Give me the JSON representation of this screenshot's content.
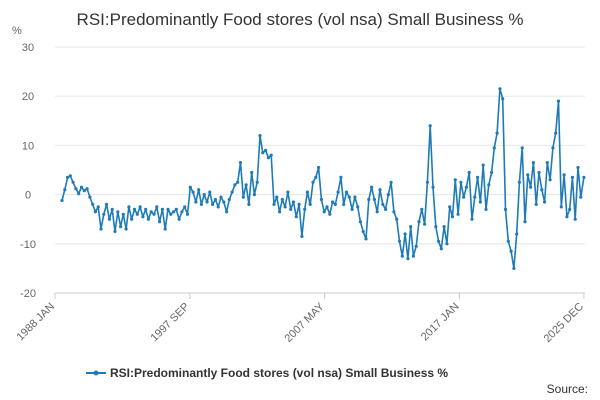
{
  "chart_data": {
    "type": "line",
    "title": "RSI:Predominantly Food stores (vol nsa) Small Business %",
    "ylabel": "%",
    "xlabel": "",
    "ylim": [
      -20,
      30
    ],
    "yticks": [
      30,
      20,
      10,
      0,
      -10,
      -20
    ],
    "x_range": [
      1988.0,
      2026.0
    ],
    "xticks": [
      {
        "label": "1988 JAN",
        "x": 1988.0
      },
      {
        "label": "1997 SEP",
        "x": 1997.67
      },
      {
        "label": "2007 MAY",
        "x": 2007.33
      },
      {
        "label": "2017 JAN",
        "x": 2017.0
      },
      {
        "label": "2025 DEC",
        "x": 2025.92
      }
    ],
    "grid": true,
    "legend": "bottom-center",
    "series": [
      {
        "name": "RSI:Predominantly Food stores (vol nsa) Small Business %",
        "color": "#1f7bb6",
        "points": [
          [
            1988.5,
            -1.2
          ],
          [
            1988.7,
            1.0
          ],
          [
            1988.9,
            3.5
          ],
          [
            1989.1,
            3.8
          ],
          [
            1989.3,
            2.5
          ],
          [
            1989.5,
            1.2
          ],
          [
            1989.7,
            0.2
          ],
          [
            1989.9,
            1.5
          ],
          [
            1990.1,
            0.8
          ],
          [
            1990.3,
            1.2
          ],
          [
            1990.5,
            -0.5
          ],
          [
            1990.7,
            -2.0
          ],
          [
            1990.9,
            -3.5
          ],
          [
            1991.1,
            -2.5
          ],
          [
            1991.3,
            -7.0
          ],
          [
            1991.5,
            -4.0
          ],
          [
            1991.7,
            -2.0
          ],
          [
            1991.9,
            -5.0
          ],
          [
            1992.1,
            -3.0
          ],
          [
            1992.3,
            -7.5
          ],
          [
            1992.5,
            -3.5
          ],
          [
            1992.7,
            -6.5
          ],
          [
            1992.9,
            -4.0
          ],
          [
            1993.1,
            -7.0
          ],
          [
            1993.3,
            -2.5
          ],
          [
            1993.5,
            -5.0
          ],
          [
            1993.7,
            -3.0
          ],
          [
            1993.9,
            -4.0
          ],
          [
            1994.1,
            -2.5
          ],
          [
            1994.3,
            -4.5
          ],
          [
            1994.5,
            -3.0
          ],
          [
            1994.7,
            -5.0
          ],
          [
            1994.9,
            -3.5
          ],
          [
            1995.1,
            -4.0
          ],
          [
            1995.3,
            -2.5
          ],
          [
            1995.5,
            -5.5
          ],
          [
            1995.7,
            -3.0
          ],
          [
            1995.9,
            -7.0
          ],
          [
            1996.1,
            -3.0
          ],
          [
            1996.3,
            -4.0
          ],
          [
            1996.5,
            -3.5
          ],
          [
            1996.7,
            -3.0
          ],
          [
            1996.9,
            -5.0
          ],
          [
            1997.1,
            -3.5
          ],
          [
            1997.3,
            -2.5
          ],
          [
            1997.5,
            -4.0
          ],
          [
            1997.7,
            1.5
          ],
          [
            1997.9,
            0.5
          ],
          [
            1998.1,
            -1.5
          ],
          [
            1998.3,
            1.0
          ],
          [
            1998.5,
            -2.0
          ],
          [
            1998.7,
            0.0
          ],
          [
            1998.9,
            -1.5
          ],
          [
            1999.1,
            0.5
          ],
          [
            1999.3,
            -2.0
          ],
          [
            1999.5,
            -1.0
          ],
          [
            1999.7,
            -2.5
          ],
          [
            1999.9,
            -0.5
          ],
          [
            2000.1,
            -1.5
          ],
          [
            2000.3,
            -3.5
          ],
          [
            2000.5,
            -1.0
          ],
          [
            2000.7,
            0.5
          ],
          [
            2000.9,
            2.0
          ],
          [
            2001.1,
            2.5
          ],
          [
            2001.3,
            6.5
          ],
          [
            2001.5,
            -0.5
          ],
          [
            2001.7,
            2.0
          ],
          [
            2001.9,
            -2.0
          ],
          [
            2002.1,
            4.5
          ],
          [
            2002.3,
            0.0
          ],
          [
            2002.5,
            2.5
          ],
          [
            2002.7,
            12.0
          ],
          [
            2002.9,
            8.5
          ],
          [
            2003.1,
            9.0
          ],
          [
            2003.3,
            7.5
          ],
          [
            2003.5,
            8.0
          ],
          [
            2003.7,
            -2.0
          ],
          [
            2003.9,
            -0.5
          ],
          [
            2004.1,
            -3.5
          ],
          [
            2004.3,
            -1.0
          ],
          [
            2004.5,
            -2.5
          ],
          [
            2004.7,
            0.5
          ],
          [
            2004.9,
            -3.0
          ],
          [
            2005.1,
            -1.5
          ],
          [
            2005.3,
            -4.5
          ],
          [
            2005.5,
            -2.0
          ],
          [
            2005.7,
            -8.5
          ],
          [
            2005.9,
            -3.0
          ],
          [
            2006.1,
            0.5
          ],
          [
            2006.3,
            -2.0
          ],
          [
            2006.5,
            2.5
          ],
          [
            2006.7,
            3.5
          ],
          [
            2006.9,
            5.5
          ],
          [
            2007.1,
            -1.0
          ],
          [
            2007.3,
            -3.5
          ],
          [
            2007.5,
            -2.5
          ],
          [
            2007.7,
            -4.0
          ],
          [
            2007.9,
            -1.5
          ],
          [
            2008.1,
            -2.0
          ],
          [
            2008.3,
            0.5
          ],
          [
            2008.5,
            3.5
          ],
          [
            2008.7,
            -2.0
          ],
          [
            2008.9,
            0.5
          ],
          [
            2009.1,
            -0.5
          ],
          [
            2009.3,
            -3.0
          ],
          [
            2009.5,
            -0.5
          ],
          [
            2009.7,
            -2.5
          ],
          [
            2009.9,
            -5.5
          ],
          [
            2010.1,
            -7.5
          ],
          [
            2010.3,
            -9.0
          ],
          [
            2010.5,
            -1.0
          ],
          [
            2010.7,
            1.5
          ],
          [
            2010.9,
            -1.0
          ],
          [
            2011.1,
            -3.5
          ],
          [
            2011.3,
            1.0
          ],
          [
            2011.5,
            -2.0
          ],
          [
            2011.7,
            -3.0
          ],
          [
            2011.9,
            0.0
          ],
          [
            2012.1,
            2.5
          ],
          [
            2012.3,
            -3.5
          ],
          [
            2012.5,
            -5.0
          ],
          [
            2012.7,
            -9.5
          ],
          [
            2012.9,
            -12.5
          ],
          [
            2013.1,
            -8.0
          ],
          [
            2013.3,
            -13.0
          ],
          [
            2013.5,
            -6.5
          ],
          [
            2013.7,
            -12.5
          ],
          [
            2013.9,
            -10.5
          ],
          [
            2014.1,
            -5.5
          ],
          [
            2014.3,
            -3.0
          ],
          [
            2014.5,
            -6.0
          ],
          [
            2014.7,
            2.5
          ],
          [
            2014.9,
            14.0
          ],
          [
            2015.1,
            1.5
          ],
          [
            2015.3,
            -6.5
          ],
          [
            2015.5,
            -9.5
          ],
          [
            2015.7,
            -11.0
          ],
          [
            2015.9,
            -6.5
          ],
          [
            2016.1,
            -10.0
          ],
          [
            2016.3,
            -2.5
          ],
          [
            2016.5,
            -4.5
          ],
          [
            2016.7,
            3.0
          ],
          [
            2016.9,
            -4.0
          ],
          [
            2017.1,
            2.5
          ],
          [
            2017.3,
            -0.5
          ],
          [
            2017.5,
            1.5
          ],
          [
            2017.7,
            4.5
          ],
          [
            2017.9,
            -5.0
          ],
          [
            2018.1,
            -0.5
          ],
          [
            2018.3,
            3.5
          ],
          [
            2018.5,
            -1.5
          ],
          [
            2018.7,
            6.0
          ],
          [
            2018.9,
            -3.0
          ],
          [
            2019.1,
            2.0
          ],
          [
            2019.3,
            4.5
          ],
          [
            2019.5,
            9.5
          ],
          [
            2019.7,
            12.5
          ],
          [
            2019.9,
            21.5
          ],
          [
            2020.1,
            19.5
          ],
          [
            2020.3,
            -3.0
          ],
          [
            2020.5,
            -9.5
          ],
          [
            2020.7,
            -11.5
          ],
          [
            2020.9,
            -15.0
          ],
          [
            2021.1,
            -8.0
          ],
          [
            2021.3,
            2.5
          ],
          [
            2021.5,
            9.5
          ],
          [
            2021.7,
            -5.5
          ],
          [
            2021.9,
            4.0
          ],
          [
            2022.1,
            1.5
          ],
          [
            2022.3,
            6.5
          ],
          [
            2022.5,
            -2.0
          ],
          [
            2022.7,
            4.5
          ],
          [
            2022.9,
            1.0
          ],
          [
            2023.1,
            -1.5
          ],
          [
            2023.3,
            6.5
          ],
          [
            2023.5,
            3.0
          ],
          [
            2023.7,
            9.5
          ],
          [
            2023.9,
            12.5
          ],
          [
            2024.1,
            19.0
          ],
          [
            2024.3,
            -2.5
          ],
          [
            2024.5,
            4.0
          ],
          [
            2024.7,
            -4.5
          ],
          [
            2024.9,
            -3.0
          ],
          [
            2025.1,
            3.5
          ],
          [
            2025.3,
            -5.0
          ],
          [
            2025.5,
            5.5
          ],
          [
            2025.7,
            -0.5
          ],
          [
            2025.92,
            3.5
          ]
        ]
      }
    ],
    "source_label": "Source:"
  }
}
